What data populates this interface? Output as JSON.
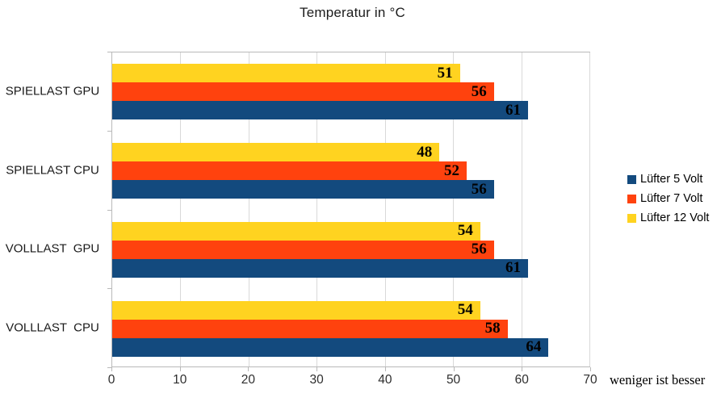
{
  "chart_data": {
    "type": "bar",
    "orientation": "horizontal",
    "title": "Temperatur in °C",
    "categories": [
      "SPIELLAST GPU",
      "SPIELLAST CPU",
      "VOLLLAST  GPU",
      "VOLLLAST  CPU"
    ],
    "series": [
      {
        "name": "Lüfter 5 Volt",
        "color": "#134a7e",
        "values": [
          61,
          56,
          61,
          64
        ]
      },
      {
        "name": "Lüfter 7 Volt",
        "color": "#ff420e",
        "values": [
          56,
          52,
          56,
          58
        ]
      },
      {
        "name": "Lüfter 12 Volt",
        "color": "#ffd320",
        "values": [
          51,
          48,
          54,
          54
        ]
      }
    ],
    "xlim": [
      0,
      70
    ],
    "x_ticks": [
      0,
      10,
      20,
      30,
      40,
      50,
      60,
      70
    ],
    "grid": "vertical-only",
    "legend_position": "right",
    "note": "weniger ist besser",
    "colors": {
      "grid": "#d9d9d9",
      "axis": "#b9b9b9",
      "value_label": "#000000"
    }
  }
}
